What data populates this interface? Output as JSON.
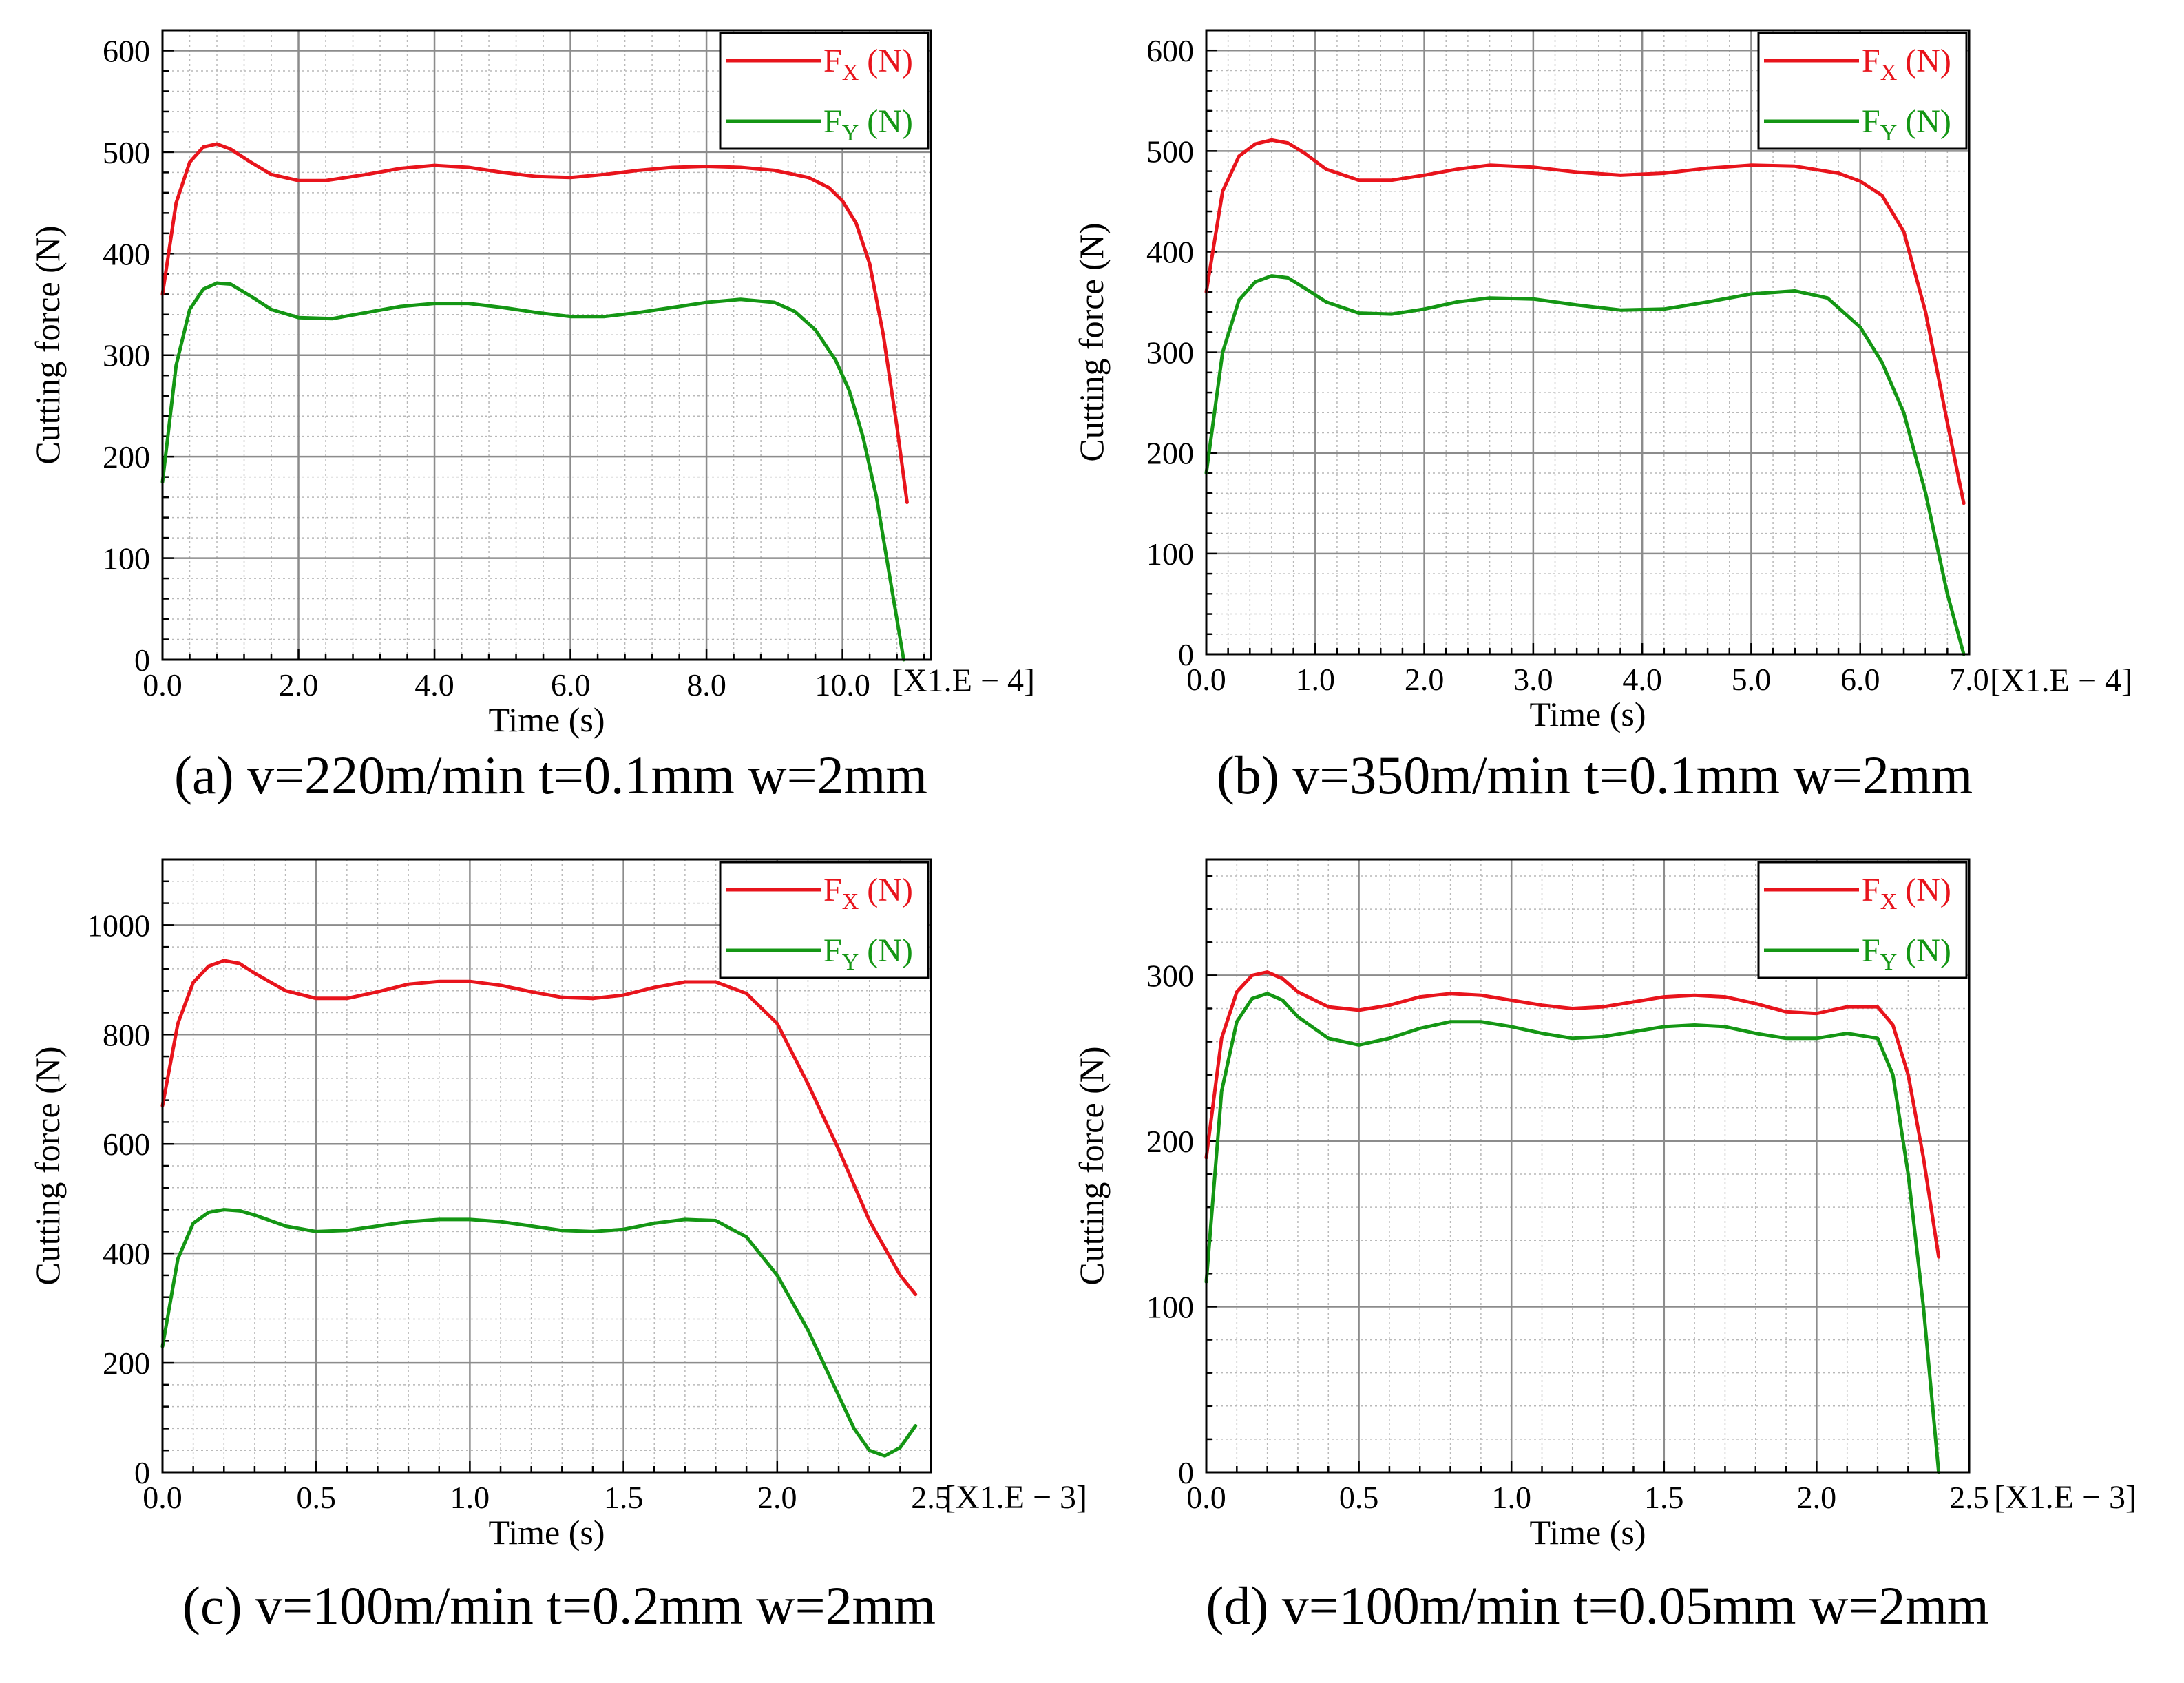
{
  "figure": {
    "panels": [
      "a",
      "b",
      "c",
      "d"
    ]
  },
  "colors": {
    "fx": "#e8141c",
    "fy": "#149614",
    "major_grid": "#8c8c8c",
    "minor_grid": "#b9b9b9",
    "axis": "#000000"
  },
  "chart_data": [
    {
      "type": "line",
      "caption": "(a) v=220m/min t=0.1mm w=2mm",
      "xlabel": "Time (s)",
      "ylabel": "Cutting force (N)",
      "x_scale_label": "[X1.E − 4]",
      "xlim": [
        0,
        11.3
      ],
      "ylim": [
        0,
        620
      ],
      "x_ticks": [
        0,
        2,
        4,
        6,
        8,
        10
      ],
      "x_tick_labels": [
        "0.0",
        "2.0",
        "4.0",
        "6.0",
        "8.0",
        "10.0"
      ],
      "y_ticks": [
        0,
        100,
        200,
        300,
        400,
        500,
        600
      ],
      "y_tick_labels": [
        "0",
        "100",
        "200",
        "300",
        "400",
        "500",
        "600"
      ],
      "grid": true,
      "legend_position": "top-right",
      "series": [
        {
          "name": "FX (N)",
          "legend_main": "F",
          "legend_sub": "X",
          "legend_unit": " (N)",
          "color_key": "fx",
          "x": [
            0,
            0.2,
            0.4,
            0.6,
            0.8,
            1.0,
            1.3,
            1.6,
            2.0,
            2.4,
            3.0,
            3.5,
            4.0,
            4.5,
            5.0,
            5.5,
            6.0,
            6.5,
            7.0,
            7.5,
            8.0,
            8.5,
            9.0,
            9.5,
            9.8,
            10.0,
            10.2,
            10.4,
            10.6,
            10.8,
            10.95
          ],
          "y": [
            360,
            450,
            490,
            505,
            508,
            503,
            490,
            478,
            472,
            472,
            478,
            484,
            487,
            485,
            480,
            476,
            475,
            478,
            482,
            485,
            486,
            485,
            482,
            475,
            465,
            452,
            430,
            390,
            320,
            230,
            155
          ]
        },
        {
          "name": "FY (N)",
          "legend_main": "F",
          "legend_sub": "Y",
          "legend_unit": " (N)",
          "color_key": "fy",
          "x": [
            0,
            0.2,
            0.4,
            0.6,
            0.8,
            1.0,
            1.3,
            1.6,
            2.0,
            2.5,
            3.0,
            3.5,
            4.0,
            4.5,
            5.0,
            5.5,
            6.0,
            6.5,
            7.0,
            7.5,
            8.0,
            8.5,
            9.0,
            9.3,
            9.6,
            9.9,
            10.1,
            10.3,
            10.5,
            10.7,
            10.9
          ],
          "y": [
            175,
            290,
            345,
            365,
            371,
            370,
            358,
            345,
            337,
            336,
            342,
            348,
            351,
            351,
            347,
            342,
            338,
            338,
            342,
            347,
            352,
            355,
            352,
            343,
            325,
            295,
            265,
            220,
            160,
            80,
            0
          ]
        }
      ]
    },
    {
      "type": "line",
      "caption": "(b) v=350m/min t=0.1mm w=2mm",
      "xlabel": "Time (s)",
      "ylabel": "Cutting force (N)",
      "x_scale_label": "[X1.E − 4]",
      "xlim": [
        0,
        7.0
      ],
      "ylim": [
        0,
        620
      ],
      "x_ticks": [
        0,
        1,
        2,
        3,
        4,
        5,
        6,
        7
      ],
      "x_tick_labels": [
        "0.0",
        "1.0",
        "2.0",
        "3.0",
        "4.0",
        "5.0",
        "6.0",
        "7.0"
      ],
      "y_ticks": [
        0,
        100,
        200,
        300,
        400,
        500,
        600
      ],
      "y_tick_labels": [
        "0",
        "100",
        "200",
        "300",
        "400",
        "500",
        "600"
      ],
      "grid": true,
      "legend_position": "top-right",
      "series": [
        {
          "name": "FX (N)",
          "legend_main": "F",
          "legend_sub": "X",
          "legend_unit": " (N)",
          "color_key": "fx",
          "x": [
            0,
            0.15,
            0.3,
            0.45,
            0.6,
            0.75,
            0.9,
            1.1,
            1.4,
            1.7,
            2.0,
            2.3,
            2.6,
            3.0,
            3.4,
            3.8,
            4.2,
            4.6,
            5.0,
            5.4,
            5.8,
            6.0,
            6.2,
            6.4,
            6.6,
            6.8,
            6.95
          ],
          "y": [
            360,
            460,
            495,
            507,
            511,
            508,
            498,
            482,
            471,
            471,
            476,
            482,
            486,
            484,
            479,
            476,
            478,
            483,
            486,
            485,
            478,
            470,
            456,
            420,
            340,
            230,
            150
          ]
        },
        {
          "name": "FY (N)",
          "legend_main": "F",
          "legend_sub": "Y",
          "legend_unit": " (N)",
          "color_key": "fy",
          "x": [
            0,
            0.15,
            0.3,
            0.45,
            0.6,
            0.75,
            0.9,
            1.1,
            1.4,
            1.7,
            2.0,
            2.3,
            2.6,
            3.0,
            3.4,
            3.8,
            4.2,
            4.6,
            5.0,
            5.4,
            5.7,
            6.0,
            6.2,
            6.4,
            6.6,
            6.8,
            6.95
          ],
          "y": [
            180,
            300,
            352,
            370,
            376,
            374,
            364,
            350,
            339,
            338,
            343,
            350,
            354,
            353,
            347,
            342,
            343,
            350,
            358,
            361,
            354,
            325,
            290,
            240,
            160,
            60,
            0
          ]
        }
      ]
    },
    {
      "type": "line",
      "caption": "(c) v=100m/min t=0.2mm w=2mm",
      "xlabel": "Time (s)",
      "ylabel": "Cutting force (N)",
      "x_scale_label": "[X1.E − 3]",
      "xlim": [
        0,
        2.5
      ],
      "ylim": [
        0,
        1120
      ],
      "x_ticks": [
        0,
        0.5,
        1.0,
        1.5,
        2.0,
        2.5
      ],
      "x_tick_labels": [
        "0.0",
        "0.5",
        "1.0",
        "1.5",
        "2.0",
        "2.5"
      ],
      "y_ticks": [
        0,
        200,
        400,
        600,
        800,
        1000
      ],
      "y_tick_labels": [
        "0",
        "200",
        "400",
        "600",
        "800",
        "1000"
      ],
      "grid": true,
      "legend_position": "top-right",
      "series": [
        {
          "name": "FX (N)",
          "legend_main": "F",
          "legend_sub": "X",
          "legend_unit": " (N)",
          "color_key": "fx",
          "x": [
            0,
            0.05,
            0.1,
            0.15,
            0.2,
            0.25,
            0.3,
            0.4,
            0.5,
            0.6,
            0.7,
            0.8,
            0.9,
            1.0,
            1.1,
            1.2,
            1.3,
            1.4,
            1.5,
            1.6,
            1.7,
            1.8,
            1.9,
            2.0,
            2.1,
            2.2,
            2.3,
            2.4,
            2.45
          ],
          "y": [
            670,
            820,
            895,
            925,
            935,
            930,
            912,
            880,
            866,
            866,
            878,
            892,
            897,
            897,
            890,
            878,
            868,
            866,
            872,
            886,
            896,
            896,
            875,
            820,
            710,
            590,
            460,
            360,
            325
          ]
        },
        {
          "name": "FY (N)",
          "legend_main": "F",
          "legend_sub": "Y",
          "legend_unit": " (N)",
          "color_key": "fy",
          "x": [
            0,
            0.05,
            0.1,
            0.15,
            0.2,
            0.25,
            0.3,
            0.4,
            0.5,
            0.6,
            0.7,
            0.8,
            0.9,
            1.0,
            1.1,
            1.2,
            1.3,
            1.4,
            1.5,
            1.6,
            1.7,
            1.8,
            1.9,
            2.0,
            2.1,
            2.2,
            2.25,
            2.3,
            2.35,
            2.4,
            2.45
          ],
          "y": [
            230,
            390,
            455,
            475,
            480,
            478,
            470,
            450,
            440,
            442,
            450,
            458,
            462,
            462,
            458,
            450,
            442,
            440,
            444,
            455,
            462,
            460,
            430,
            360,
            260,
            140,
            80,
            40,
            30,
            45,
            85
          ]
        }
      ]
    },
    {
      "type": "line",
      "caption": "(d) v=100m/min t=0.05mm w=2mm",
      "xlabel": "Time (s)",
      "ylabel": "Cutting force (N)",
      "x_scale_label": "[X1.E − 3]",
      "xlim": [
        0,
        2.5
      ],
      "ylim": [
        0,
        370
      ],
      "x_ticks": [
        0,
        0.5,
        1.0,
        1.5,
        2.0,
        2.5
      ],
      "x_tick_labels": [
        "0.0",
        "0.5",
        "1.0",
        "1.5",
        "2.0",
        "2.5"
      ],
      "y_ticks": [
        0,
        100,
        200,
        300
      ],
      "y_tick_labels": [
        "0",
        "100",
        "200",
        "300"
      ],
      "grid": true,
      "legend_position": "top-right",
      "series": [
        {
          "name": "FX (N)",
          "legend_main": "F",
          "legend_sub": "X",
          "legend_unit": " (N)",
          "color_key": "fx",
          "x": [
            0,
            0.05,
            0.1,
            0.15,
            0.2,
            0.25,
            0.3,
            0.4,
            0.5,
            0.6,
            0.7,
            0.8,
            0.9,
            1.0,
            1.1,
            1.2,
            1.3,
            1.4,
            1.5,
            1.6,
            1.7,
            1.8,
            1.9,
            2.0,
            2.1,
            2.2,
            2.25,
            2.3,
            2.35,
            2.4
          ],
          "y": [
            190,
            262,
            290,
            300,
            302,
            298,
            290,
            281,
            279,
            282,
            287,
            289,
            288,
            285,
            282,
            280,
            281,
            284,
            287,
            288,
            287,
            283,
            278,
            277,
            281,
            281,
            270,
            240,
            190,
            130
          ]
        },
        {
          "name": "FY (N)",
          "legend_main": "F",
          "legend_sub": "Y",
          "legend_unit": " (N)",
          "color_key": "fy",
          "x": [
            0,
            0.05,
            0.1,
            0.15,
            0.2,
            0.25,
            0.3,
            0.4,
            0.5,
            0.6,
            0.7,
            0.8,
            0.9,
            1.0,
            1.1,
            1.2,
            1.3,
            1.4,
            1.5,
            1.6,
            1.7,
            1.8,
            1.9,
            2.0,
            2.1,
            2.2,
            2.25,
            2.3,
            2.35,
            2.4
          ],
          "y": [
            115,
            230,
            272,
            286,
            289,
            285,
            275,
            262,
            258,
            262,
            268,
            272,
            272,
            269,
            265,
            262,
            263,
            266,
            269,
            270,
            269,
            265,
            262,
            262,
            265,
            262,
            240,
            180,
            100,
            0
          ]
        }
      ]
    }
  ]
}
